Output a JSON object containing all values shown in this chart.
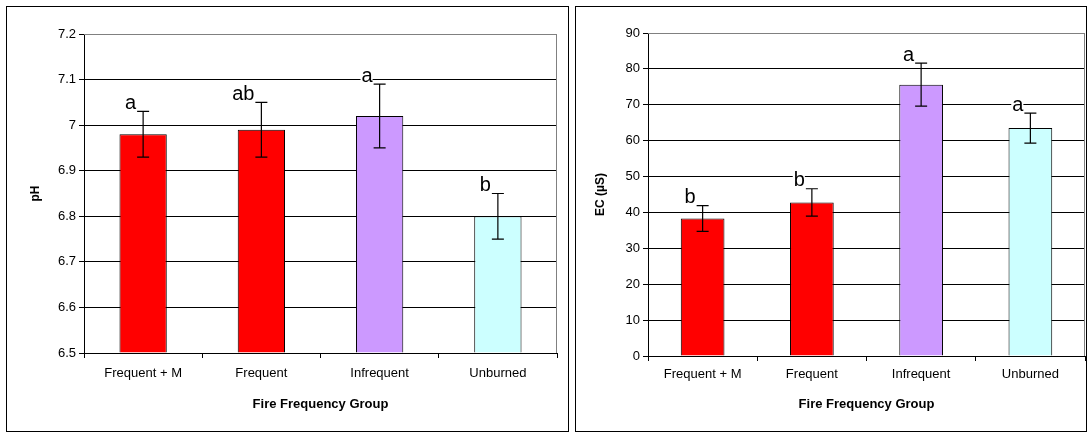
{
  "chart_data": [
    {
      "type": "bar",
      "xlabel": "Fire Frequency Group",
      "ylabel": "pH",
      "categories": [
        "Frequent + M",
        "Frequent",
        "Infrequent",
        "Unburned"
      ],
      "values": [
        6.98,
        6.99,
        7.02,
        6.8
      ],
      "errors": [
        0.05,
        0.06,
        0.07,
        0.05
      ],
      "colors": [
        "#ff0000",
        "#ff0000",
        "#cc99ff",
        "#ccffff"
      ],
      "ylim": [
        6.5,
        7.2
      ],
      "yticks": [
        6.5,
        6.6,
        6.7,
        6.8,
        6.9,
        7,
        7.1,
        7.2
      ],
      "grid": "y",
      "annotations": [
        {
          "text": "a",
          "x": "Frequent + M",
          "y": 7.03
        },
        {
          "text": "ab",
          "x": "Frequent",
          "y": 7.05
        },
        {
          "text": "a",
          "x": "Infrequent",
          "y": 7.09
        },
        {
          "text": "b",
          "x": "Unburned",
          "y": 6.85
        }
      ]
    },
    {
      "type": "bar",
      "xlabel": "Fire Frequency Group",
      "ylabel": "EC (µS)",
      "categories": [
        "Frequent + M",
        "Frequent",
        "Infrequent",
        "Unburned"
      ],
      "values": [
        38.3,
        42.8,
        75.6,
        63.5
      ],
      "errors": [
        3.6,
        3.8,
        6,
        4.2
      ],
      "colors": [
        "#ff0000",
        "#ff0000",
        "#cc99ff",
        "#ccffff"
      ],
      "ylim": [
        0,
        90
      ],
      "yticks": [
        0,
        10,
        20,
        30,
        40,
        50,
        60,
        70,
        80,
        90
      ],
      "grid": "y",
      "annotations": [
        {
          "text": "b",
          "x": "Frequent + M",
          "y": 41.9
        },
        {
          "text": "b",
          "x": "Frequent",
          "y": 46.6
        },
        {
          "text": "a",
          "x": "Infrequent",
          "y": 81.6
        },
        {
          "text": "a",
          "x": "Unburned",
          "y": 67.7
        }
      ]
    }
  ]
}
